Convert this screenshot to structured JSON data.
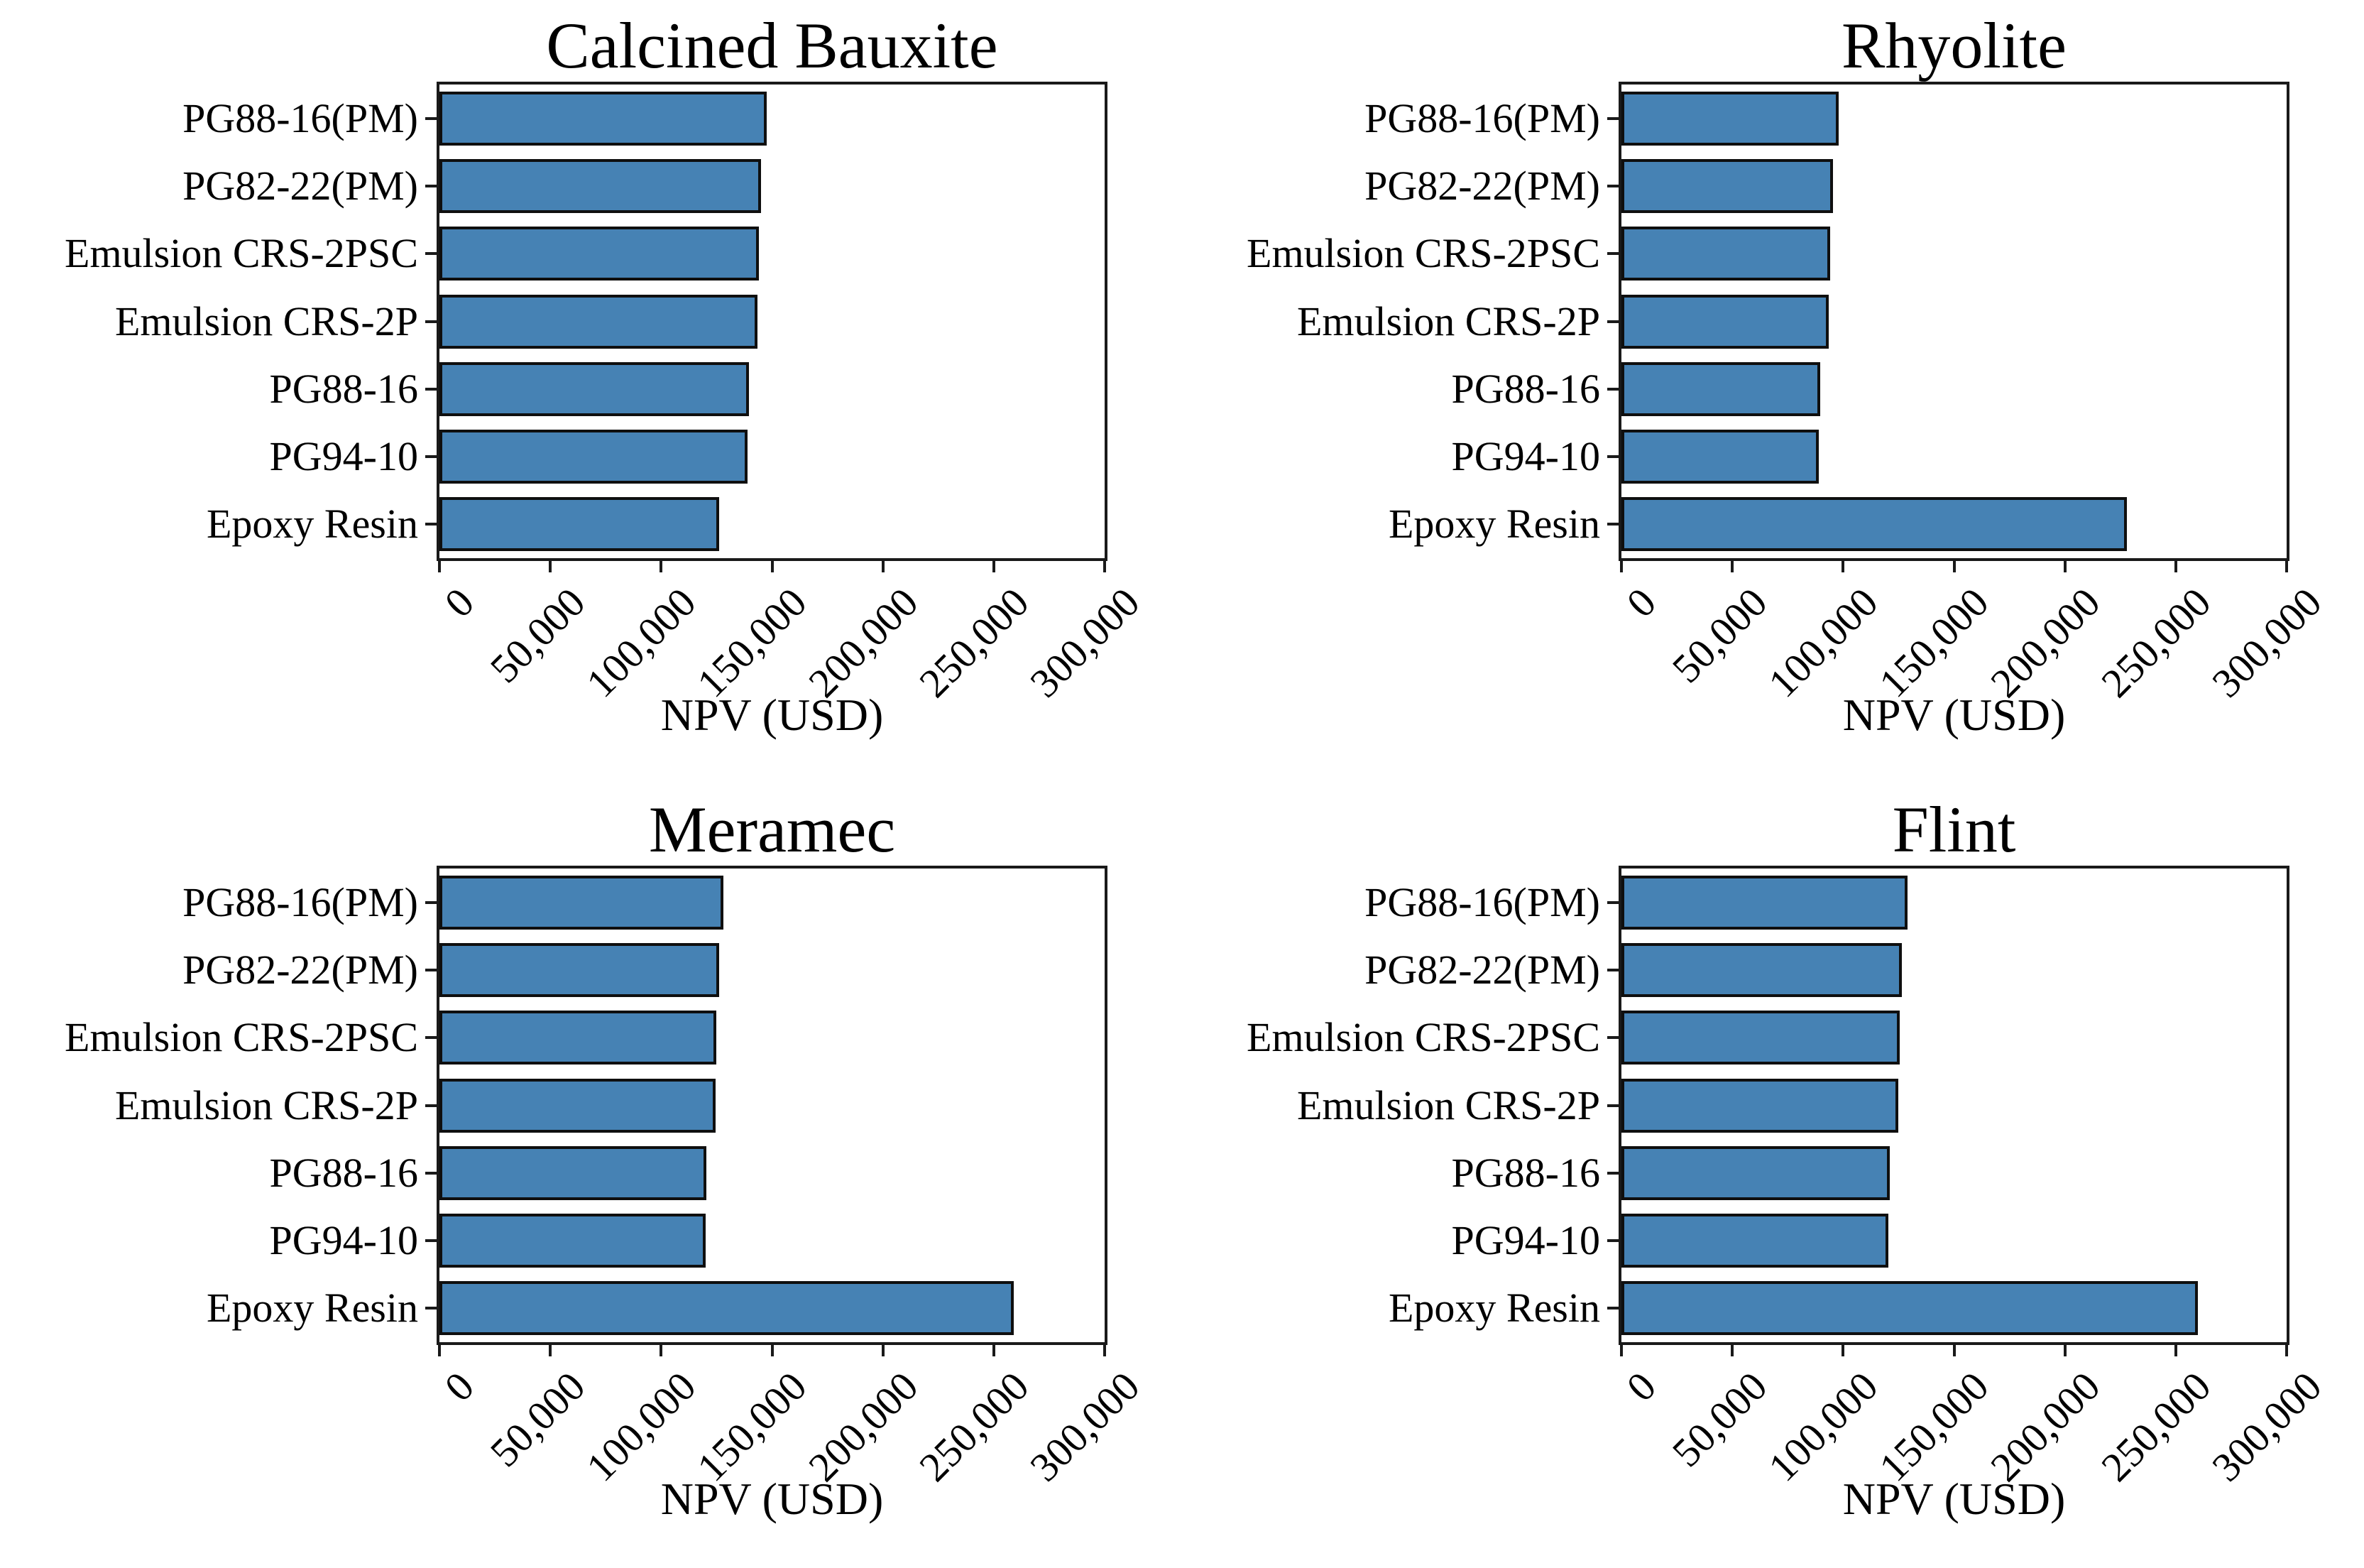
{
  "figure": {
    "background": "#ffffff"
  },
  "style": {
    "bar_color": "#4682b4",
    "bar_edge_color": "#0f0f0f",
    "axis_color": "#1a1a1a",
    "text_color": "#000000"
  },
  "chart_data": [
    {
      "type": "bar",
      "orientation": "horizontal",
      "title": "Calcined Bauxite",
      "xlabel": "NPV (USD)",
      "xlim": [
        0,
        300000
      ],
      "grid": false,
      "xticks": [
        0,
        50000,
        100000,
        150000,
        200000,
        250000,
        300000
      ],
      "xtick_labels": [
        "0",
        "50,000",
        "100,000",
        "150,000",
        "200,000",
        "250,000",
        "300,000"
      ],
      "categories": [
        "PG88-16(PM)",
        "PG82-22(PM)",
        "Emulsion CRS-2PSC",
        "Emulsion CRS-2P",
        "PG88-16",
        "PG94-10",
        "Epoxy Resin"
      ],
      "values": [
        147500,
        145000,
        144000,
        143500,
        139500,
        139000,
        126000
      ]
    },
    {
      "type": "bar",
      "orientation": "horizontal",
      "title": "Rhyolite",
      "xlabel": "NPV (USD)",
      "xlim": [
        0,
        300000
      ],
      "grid": false,
      "xticks": [
        0,
        50000,
        100000,
        150000,
        200000,
        250000,
        300000
      ],
      "xtick_labels": [
        "0",
        "50,000",
        "100,000",
        "150,000",
        "200,000",
        "250,000",
        "300,000"
      ],
      "categories": [
        "PG88-16(PM)",
        "PG82-22(PM)",
        "Emulsion CRS-2PSC",
        "Emulsion CRS-2P",
        "PG88-16",
        "PG94-10",
        "Epoxy Resin"
      ],
      "values": [
        98000,
        95500,
        94000,
        93500,
        89500,
        89000,
        228000
      ]
    },
    {
      "type": "bar",
      "orientation": "horizontal",
      "title": "Meramec",
      "xlabel": "NPV (USD)",
      "xlim": [
        0,
        300000
      ],
      "grid": false,
      "xticks": [
        0,
        50000,
        100000,
        150000,
        200000,
        250000,
        300000
      ],
      "xtick_labels": [
        "0",
        "50,000",
        "100,000",
        "150,000",
        "200,000",
        "250,000",
        "300,000"
      ],
      "categories": [
        "PG88-16(PM)",
        "PG82-22(PM)",
        "Emulsion CRS-2PSC",
        "Emulsion CRS-2P",
        "PG88-16",
        "PG94-10",
        "Epoxy Resin"
      ],
      "values": [
        128000,
        126000,
        125000,
        124500,
        120500,
        120000,
        259000
      ]
    },
    {
      "type": "bar",
      "orientation": "horizontal",
      "title": "Flint",
      "xlabel": "NPV (USD)",
      "xlim": [
        0,
        300000
      ],
      "grid": false,
      "xticks": [
        0,
        50000,
        100000,
        150000,
        200000,
        250000,
        300000
      ],
      "xtick_labels": [
        "0",
        "50,000",
        "100,000",
        "150,000",
        "200,000",
        "250,000",
        "300,000"
      ],
      "categories": [
        "PG88-16(PM)",
        "PG82-22(PM)",
        "Emulsion CRS-2PSC",
        "Emulsion CRS-2P",
        "PG88-16",
        "PG94-10",
        "Epoxy Resin"
      ],
      "values": [
        129000,
        126500,
        125500,
        125000,
        121000,
        120500,
        260000
      ]
    }
  ]
}
